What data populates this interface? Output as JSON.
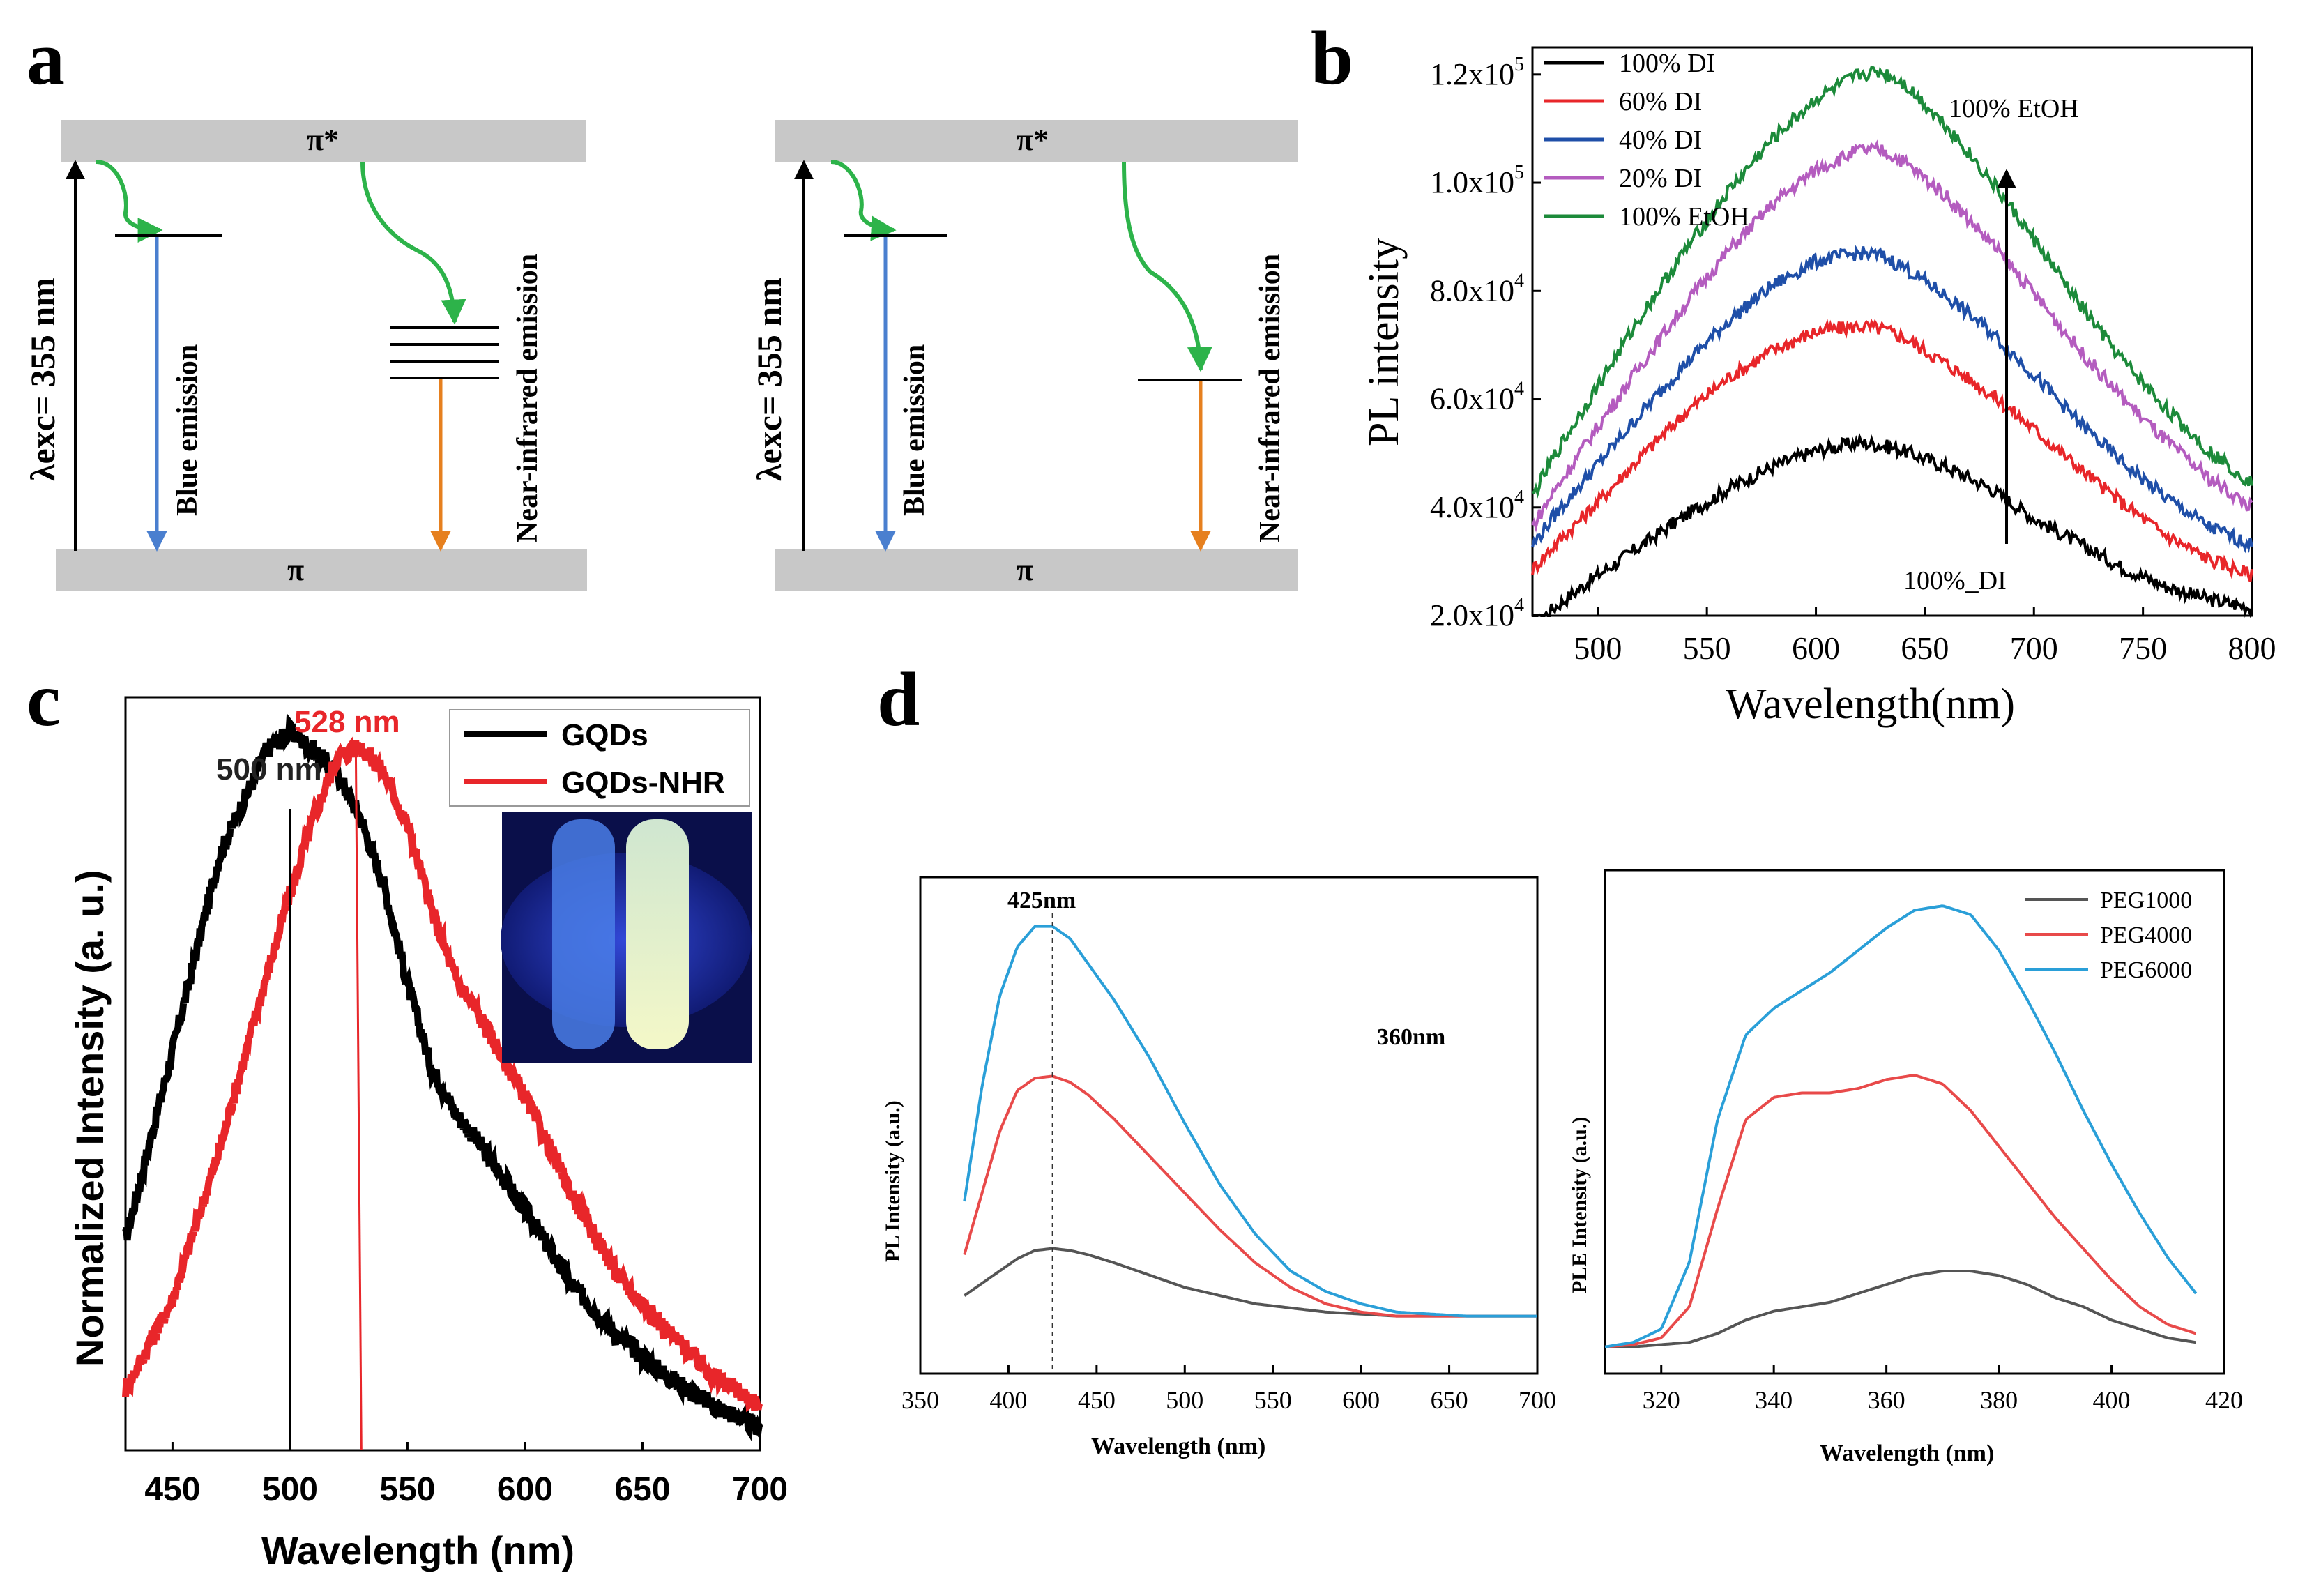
{
  "panel_letters": {
    "a": "a",
    "b": "b",
    "c": "c",
    "d": "d"
  },
  "colors": {
    "black": "#000000",
    "red": "#e8262a",
    "blue": "#1f4fa8",
    "magenta": "#b45cbf",
    "green": "#1c8a3a",
    "band": "#c8c8c8",
    "arrow_green": "#2db34a",
    "arrow_blue": "#4a7fcf",
    "arrow_orange": "#e6801f",
    "d_black": "#555555",
    "d_red": "#e84a4a",
    "d_blue": "#2a9fd8",
    "inset_bg": "#1b2a8a"
  },
  "panel_a": {
    "left": {
      "pi_star": "π*",
      "pi": "π",
      "excitation": "λexc= 355 nm",
      "blue_label": "Blue emission",
      "nir_label": "Near-infrared emission"
    },
    "right": {
      "pi_star": "π*",
      "pi": "π",
      "excitation": "λexc= 355 nm",
      "blue_label": "Blue emission",
      "nir_label": "Near-infrared emission"
    }
  },
  "chart_data": [
    {
      "panel": "b",
      "type": "line",
      "xlabel": "Wavelength(nm)",
      "ylabel": "PL intensity",
      "xlim": [
        470,
        800
      ],
      "ylim": [
        20000,
        125000
      ],
      "xticks": [
        500,
        550,
        600,
        650,
        700,
        750,
        800
      ],
      "yticks": [
        {
          "value": 20000,
          "label": "2.0x10^4"
        },
        {
          "value": 40000,
          "label": "4.0x10^4"
        },
        {
          "value": 60000,
          "label": "6.0x10^4"
        },
        {
          "value": 80000,
          "label": "8.0x10^4"
        },
        {
          "value": 100000,
          "label": "1.0x10^5"
        },
        {
          "value": 120000,
          "label": "1.2x10^5"
        }
      ],
      "x": [
        470,
        480,
        500,
        520,
        540,
        560,
        580,
        600,
        620,
        630,
        640,
        660,
        680,
        700,
        720,
        740,
        760,
        780,
        800
      ],
      "series": [
        {
          "name": "100% DI",
          "color": "#000000",
          "values": [
            18000,
            21500,
            27500,
            33000,
            38500,
            43500,
            47500,
            50500,
            52000,
            51500,
            50500,
            47500,
            43500,
            38000,
            33500,
            29000,
            25500,
            23000,
            21500
          ]
        },
        {
          "name": "60% DI",
          "color": "#e8262a",
          "values": [
            28500,
            33000,
            41000,
            49500,
            57500,
            64000,
            69000,
            72500,
            73500,
            73000,
            71500,
            66500,
            61000,
            54500,
            47500,
            41000,
            35000,
            30500,
            27500
          ]
        },
        {
          "name": "40% DI",
          "color": "#1f4fa8",
          "values": [
            33000,
            38500,
            48000,
            57500,
            66500,
            74500,
            81000,
            85500,
            87000,
            86500,
            84500,
            79000,
            72500,
            64500,
            56000,
            48500,
            42000,
            36500,
            33000
          ]
        },
        {
          "name": "20% DI",
          "color": "#b45cbf",
          "values": [
            36500,
            43000,
            55000,
            66500,
            77500,
            87500,
            96000,
            102500,
            106000,
            106000,
            104000,
            97500,
            89000,
            79500,
            69500,
            60500,
            52500,
            45500,
            40000
          ]
        },
        {
          "name": "100% EtOH",
          "color": "#1c8a3a",
          "values": [
            42000,
            49500,
            62500,
            75500,
            87500,
            98500,
            108000,
            115500,
            120000,
            120500,
            118500,
            110500,
            100500,
            89500,
            78000,
            67500,
            58500,
            50500,
            44500
          ]
        }
      ],
      "legend": [
        "100% DI",
        "60% DI",
        "40% DI",
        "20% DI",
        "100% EtOH"
      ],
      "annotations": {
        "top": "100%  EtOH",
        "bottom": "100%_DI"
      }
    },
    {
      "panel": "c",
      "type": "line",
      "xlabel": "Wavelength (nm)",
      "ylabel": "Normalized Intensity (a. u.)",
      "xlim": [
        430,
        700
      ],
      "ylim": [
        0,
        1.0
      ],
      "xticks": [
        450,
        500,
        550,
        600,
        650,
        700
      ],
      "x": [
        430,
        450,
        470,
        490,
        500,
        510,
        520,
        530,
        540,
        550,
        560,
        570,
        580,
        600,
        620,
        640,
        660,
        680,
        700
      ],
      "series": [
        {
          "name": "GQDs",
          "color": "#000000",
          "values": [
            0.28,
            0.53,
            0.79,
            0.93,
            0.955,
            0.93,
            0.9,
            0.84,
            0.75,
            0.62,
            0.51,
            0.45,
            0.41,
            0.32,
            0.22,
            0.15,
            0.1,
            0.06,
            0.03
          ]
        },
        {
          "name": "GQDs-NHR",
          "color": "#e8262a",
          "values": [
            0.08,
            0.2,
            0.4,
            0.63,
            0.74,
            0.84,
            0.92,
            0.935,
            0.9,
            0.83,
            0.72,
            0.63,
            0.58,
            0.47,
            0.34,
            0.23,
            0.16,
            0.1,
            0.06
          ]
        }
      ],
      "legend": [
        "GQDs",
        "GQDs-NHR"
      ],
      "annotations": {
        "peak1": "500 nm",
        "peak2": "528 nm",
        "peak1_x": 500,
        "peak2_x": 528
      }
    },
    {
      "panel": "d-left",
      "type": "line",
      "xlabel": "Wavelength (nm)",
      "ylabel": "PL  Intensity (a.u.)",
      "xlim": [
        350,
        700
      ],
      "ylim": [
        0,
        1.0
      ],
      "xticks": [
        350,
        400,
        450,
        500,
        550,
        600,
        650,
        700
      ],
      "x": [
        375,
        385,
        395,
        405,
        415,
        425,
        435,
        445,
        460,
        480,
        500,
        520,
        540,
        560,
        580,
        600,
        620,
        640,
        660,
        680,
        700
      ],
      "series": [
        {
          "name": "PEG1000",
          "color": "#555555",
          "values": [
            0.1,
            0.13,
            0.16,
            0.19,
            0.21,
            0.215,
            0.21,
            0.2,
            0.18,
            0.15,
            0.12,
            0.1,
            0.08,
            0.07,
            0.06,
            0.055,
            0.05,
            0.05,
            0.05,
            0.05,
            0.05
          ]
        },
        {
          "name": "PEG4000",
          "color": "#e84a4a",
          "values": [
            0.2,
            0.35,
            0.5,
            0.6,
            0.63,
            0.635,
            0.62,
            0.59,
            0.53,
            0.44,
            0.35,
            0.26,
            0.18,
            0.12,
            0.08,
            0.06,
            0.05,
            0.05,
            0.05,
            0.05,
            0.05
          ]
        },
        {
          "name": "PEG6000",
          "color": "#2a9fd8",
          "values": [
            0.33,
            0.61,
            0.83,
            0.95,
            1.0,
            1.0,
            0.97,
            0.91,
            0.82,
            0.68,
            0.52,
            0.37,
            0.25,
            0.16,
            0.11,
            0.08,
            0.06,
            0.055,
            0.05,
            0.05,
            0.05
          ]
        }
      ],
      "annotations": {
        "peak": "425nm",
        "peak_x": 425,
        "excitation": "360nm"
      }
    },
    {
      "panel": "d-right",
      "type": "line",
      "xlabel": "Wavelength (nm)",
      "ylabel": "PLE  Intensity (a.u.)",
      "xlim": [
        310,
        420
      ],
      "ylim": [
        0,
        1.0
      ],
      "xticks": [
        320,
        340,
        360,
        380,
        400,
        420
      ],
      "x": [
        310,
        315,
        320,
        325,
        330,
        335,
        340,
        345,
        350,
        355,
        360,
        365,
        370,
        375,
        380,
        385,
        390,
        395,
        400,
        405,
        410,
        415
      ],
      "series": [
        {
          "name": "PEG1000",
          "color": "#555555",
          "values": [
            0.01,
            0.01,
            0.015,
            0.02,
            0.04,
            0.07,
            0.09,
            0.1,
            0.11,
            0.13,
            0.15,
            0.17,
            0.18,
            0.18,
            0.17,
            0.15,
            0.12,
            0.1,
            0.07,
            0.05,
            0.03,
            0.02
          ]
        },
        {
          "name": "PEG4000",
          "color": "#e84a4a",
          "values": [
            0.01,
            0.015,
            0.03,
            0.1,
            0.32,
            0.52,
            0.57,
            0.58,
            0.58,
            0.59,
            0.61,
            0.62,
            0.6,
            0.54,
            0.46,
            0.38,
            0.3,
            0.23,
            0.16,
            0.1,
            0.06,
            0.04
          ]
        },
        {
          "name": "PEG6000",
          "color": "#2a9fd8",
          "values": [
            0.01,
            0.02,
            0.05,
            0.2,
            0.52,
            0.71,
            0.77,
            0.81,
            0.85,
            0.9,
            0.95,
            0.99,
            1.0,
            0.98,
            0.9,
            0.79,
            0.67,
            0.54,
            0.42,
            0.31,
            0.21,
            0.13
          ]
        }
      ],
      "legend": [
        "PEG1000",
        "PEG4000",
        "PEG6000"
      ]
    }
  ]
}
